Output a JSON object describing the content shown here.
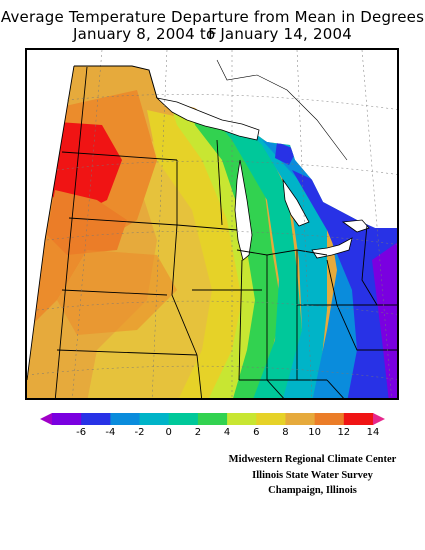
{
  "title": {
    "line1": "Average Temperature Departure from Mean in Degrees F",
    "line2": "January 8, 2004 to January 14, 2004"
  },
  "legend": {
    "ticks": [
      "-6",
      "-4",
      "-2",
      "0",
      "2",
      "4",
      "6",
      "8",
      "10",
      "12",
      "14"
    ],
    "colors": [
      "#a000c8",
      "#7a00e0",
      "#2832e6",
      "#0a8cdc",
      "#00b4c8",
      "#00c89a",
      "#32d250",
      "#c8e632",
      "#e6d228",
      "#e6aa3c",
      "#eb7d28",
      "#f01414",
      "#e6288c"
    ]
  },
  "credits": {
    "line1": "Midwestern Regional Climate Center",
    "line2": "Illinois State Water Survey",
    "line3": "Champaign, Illinois"
  }
}
